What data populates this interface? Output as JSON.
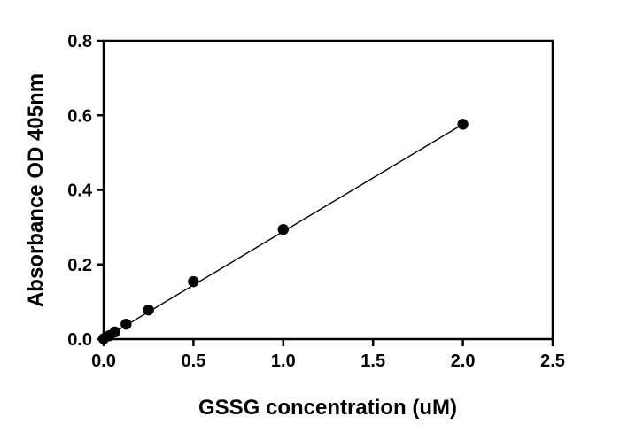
{
  "chart_data": {
    "type": "scatter",
    "title": "",
    "xlabel": "GSSG concentration (uM)",
    "ylabel": "Absorbance OD 405nm",
    "xlim": [
      0,
      2.5
    ],
    "ylim": [
      0,
      0.8
    ],
    "x_ticks": [
      0,
      0.5,
      1,
      1.5,
      2,
      2.5
    ],
    "x_tick_labels": [
      "0.0",
      "0.5",
      "1.0",
      "1.5",
      "2.0",
      "2.5"
    ],
    "y_ticks": [
      0,
      0.2,
      0.4,
      0.6,
      0.8
    ],
    "y_tick_labels": [
      "0.0",
      "0.2",
      "0.4",
      "0.6",
      "0.8"
    ],
    "grid": false,
    "legend": "none",
    "series": [
      {
        "marker_color": "#000000",
        "points": [
          {
            "x": 0,
            "y": 0.001
          },
          {
            "x": 0.031,
            "y": 0.009
          },
          {
            "x": 0.0625,
            "y": 0.019
          },
          {
            "x": 0.125,
            "y": 0.04
          },
          {
            "x": 0.25,
            "y": 0.078
          },
          {
            "x": 0.5,
            "y": 0.154
          },
          {
            "x": 1,
            "y": 0.294
          },
          {
            "x": 2,
            "y": 0.576
          }
        ]
      }
    ],
    "fit_line": {
      "type": "linear",
      "color": "#000000",
      "x_range": [
        0,
        2
      ],
      "slope": 0.2875,
      "intercept": 0.001
    }
  }
}
